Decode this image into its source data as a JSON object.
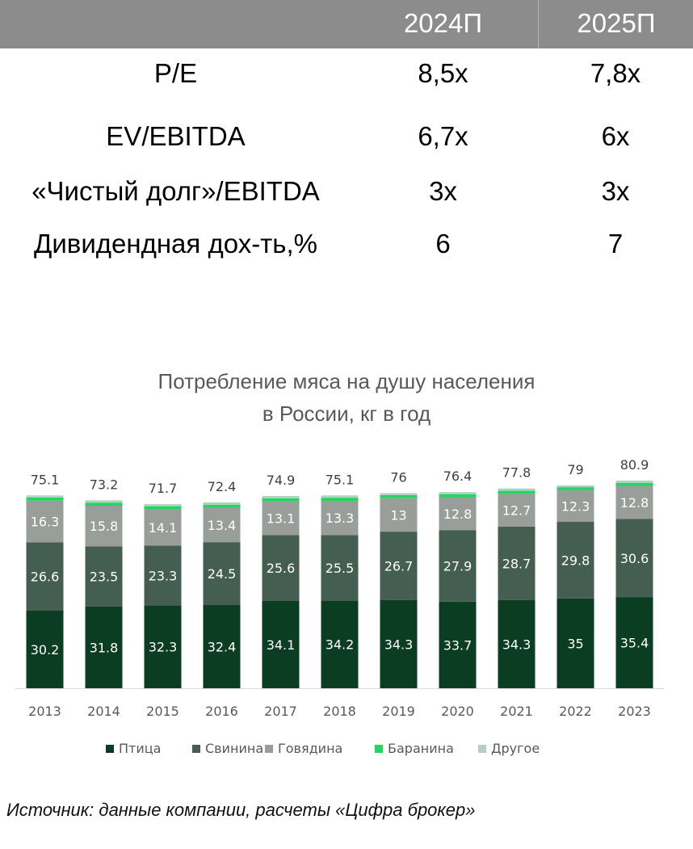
{
  "multiples": {
    "headers": [
      "2024П",
      "2025П"
    ],
    "rows": [
      {
        "label": "P/E",
        "v1": "8,5x",
        "v2": "7,8x"
      },
      {
        "label": "EV/EBITDA",
        "v1": "6,7x",
        "v2": "6x"
      },
      {
        "label": "«Чистый долг»/EBITDA",
        "v1": "3x",
        "v2": "3x"
      },
      {
        "label": "Дивидендная дох-ть,%",
        "v1": "6",
        "v2": "7"
      }
    ]
  },
  "chart_data": {
    "type": "bar",
    "stacked": true,
    "title": "Потребление мяса на душу населения",
    "subtitle": "в России, кг в год",
    "categories": [
      "2013",
      "2014",
      "2015",
      "2016",
      "2017",
      "2018",
      "2019",
      "2020",
      "2021",
      "2022",
      "2023"
    ],
    "series": [
      {
        "name": "Птица",
        "color": "#0b3d22",
        "values": [
          30.2,
          31.8,
          32.3,
          32.4,
          34.1,
          34.2,
          34.3,
          33.7,
          34.3,
          35,
          35.4
        ]
      },
      {
        "name": "Свинина",
        "color": "#445e51",
        "values": [
          26.6,
          23.5,
          23.3,
          24.5,
          25.6,
          25.5,
          26.7,
          27.9,
          28.7,
          29.8,
          30.6
        ]
      },
      {
        "name": "Говядина",
        "color": "#999e9b",
        "values": [
          16.3,
          15.8,
          14.1,
          13.4,
          13.1,
          13.3,
          13,
          12.8,
          12.7,
          12.3,
          12.8
        ]
      },
      {
        "name": "Баранина",
        "color": "#22d65f",
        "values": [
          1.2,
          1.2,
          1.2,
          1.2,
          1.2,
          1.2,
          1.2,
          1.2,
          1.2,
          1.2,
          1.2
        ]
      },
      {
        "name": "Другое",
        "color": "#b3d1c0",
        "values": [
          0.8,
          0.9,
          0.8,
          0.9,
          0.9,
          0.9,
          0.8,
          0.8,
          0.9,
          0.7,
          0.9
        ]
      }
    ],
    "totals": [
      75.1,
      73.2,
      71.7,
      72.4,
      74.9,
      75.1,
      76,
      76.4,
      77.8,
      79,
      80.9
    ],
    "ylim": [
      0,
      84
    ],
    "grid": false,
    "legend": "bottom"
  },
  "source_note": "Источник: данные компании, расчеты «Цифра брокер»"
}
